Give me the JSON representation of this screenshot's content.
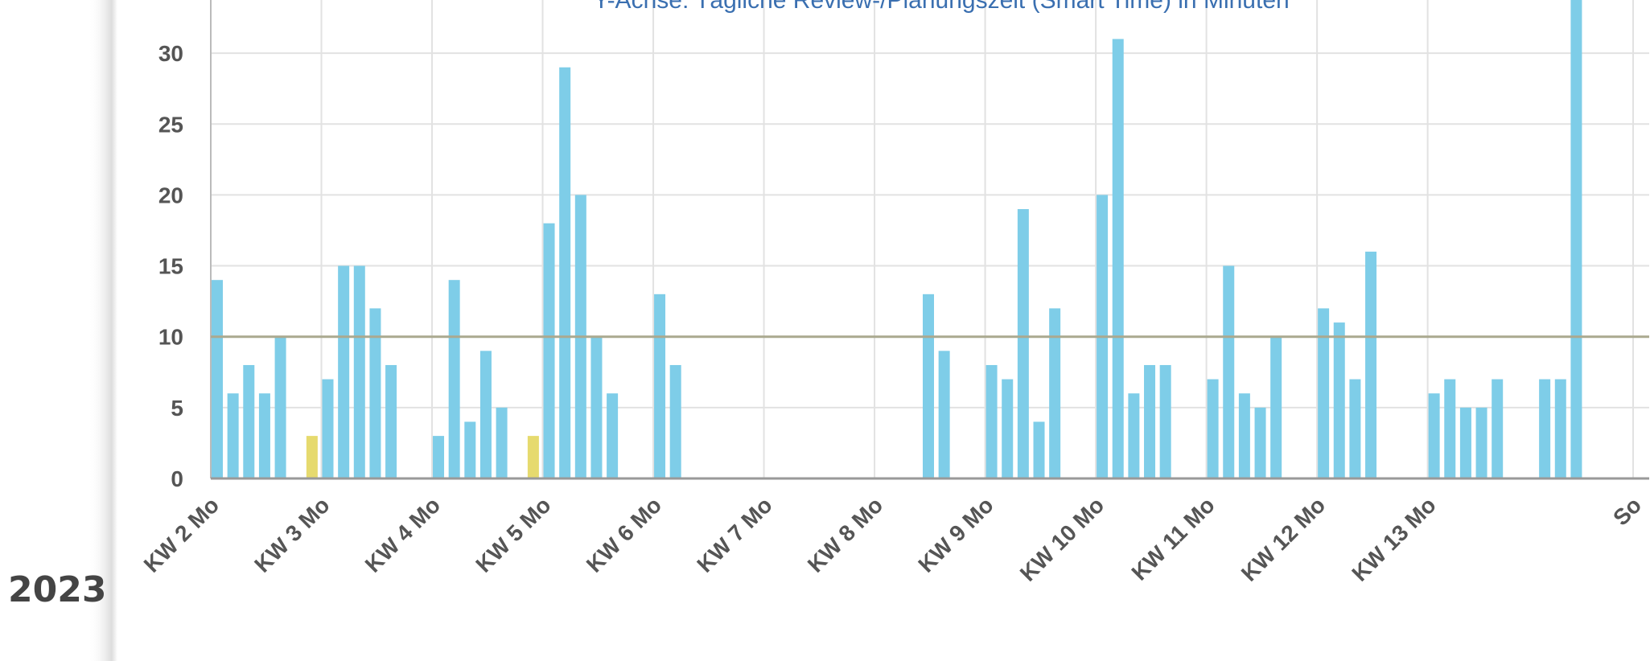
{
  "year": "2023",
  "chart_data": {
    "type": "bar",
    "title": "Y-Achse: Tägliche Review-/Planungszeit (Smart Time) in Minuten",
    "categories": [
      "KW 2 Mo",
      null,
      null,
      null,
      null,
      null,
      null,
      "KW 3 Mo",
      null,
      null,
      null,
      null,
      null,
      null,
      "KW 4 Mo",
      null,
      null,
      null,
      null,
      null,
      null,
      "KW 5 Mo",
      null,
      null,
      null,
      null,
      null,
      null,
      "KW 6 Mo",
      null,
      null,
      null,
      null,
      null,
      null,
      "KW 7 Mo",
      null,
      null,
      null,
      null,
      null,
      null,
      "KW 8 Mo",
      null,
      null,
      null,
      null,
      null,
      null,
      "KW 9 Mo",
      null,
      null,
      null,
      null,
      null,
      null,
      "KW 10 Mo",
      null,
      null,
      null,
      null,
      null,
      null,
      "KW 11 Mo",
      null,
      null,
      null,
      null,
      null,
      null,
      "KW 12 Mo",
      null,
      null,
      null,
      null,
      null,
      null,
      "KW 13 Mo",
      null,
      null,
      null,
      null,
      null,
      null,
      null,
      null,
      null,
      null,
      null,
      null,
      "So"
    ],
    "values": [
      14,
      6,
      8,
      6,
      10,
      null,
      3,
      7,
      15,
      15,
      12,
      8,
      null,
      null,
      3,
      14,
      4,
      9,
      5,
      null,
      3,
      18,
      29,
      20,
      10,
      6,
      null,
      null,
      13,
      8,
      null,
      null,
      null,
      null,
      null,
      null,
      null,
      null,
      null,
      null,
      null,
      null,
      null,
      null,
      null,
      13,
      9,
      null,
      null,
      8,
      7,
      19,
      4,
      12,
      null,
      null,
      20,
      31,
      6,
      8,
      8,
      null,
      null,
      7,
      15,
      6,
      5,
      10,
      null,
      null,
      12,
      11,
      7,
      16,
      null,
      null,
      null,
      6,
      7,
      5,
      5,
      7,
      null,
      null,
      7,
      7,
      36,
      null,
      null,
      null,
      null
    ],
    "colors": [
      "#7ecde8",
      "#7ecde8",
      "#7ecde8",
      "#7ecde8",
      "#7ecde8",
      "#7ecde8",
      "#e6da6e",
      "#7ecde8",
      "#7ecde8",
      "#7ecde8",
      "#7ecde8",
      "#7ecde8",
      "#7ecde8",
      "#7ecde8",
      "#7ecde8",
      "#7ecde8",
      "#7ecde8",
      "#7ecde8",
      "#7ecde8",
      "#7ecde8",
      "#e6da6e",
      "#7ecde8",
      "#7ecde8",
      "#7ecde8",
      "#7ecde8",
      "#7ecde8",
      "#7ecde8",
      "#7ecde8",
      "#7ecde8",
      "#7ecde8",
      "#7ecde8",
      "#7ecde8",
      "#7ecde8",
      "#7ecde8",
      "#7ecde8",
      "#7ecde8",
      "#7ecde8",
      "#7ecde8",
      "#7ecde8",
      "#7ecde8",
      "#7ecde8",
      "#7ecde8",
      "#7ecde8",
      "#7ecde8",
      "#7ecde8",
      "#7ecde8",
      "#7ecde8",
      "#7ecde8",
      "#7ecde8",
      "#7ecde8",
      "#7ecde8",
      "#7ecde8",
      "#7ecde8",
      "#7ecde8",
      "#7ecde8",
      "#7ecde8",
      "#7ecde8",
      "#7ecde8",
      "#7ecde8",
      "#7ecde8",
      "#7ecde8",
      "#7ecde8",
      "#7ecde8",
      "#7ecde8",
      "#7ecde8",
      "#7ecde8",
      "#7ecde8",
      "#7ecde8",
      "#7ecde8",
      "#7ecde8",
      "#7ecde8",
      "#7ecde8",
      "#7ecde8",
      "#7ecde8",
      "#7ecde8",
      "#7ecde8",
      "#7ecde8",
      "#7ecde8",
      "#7ecde8",
      "#7ecde8",
      "#7ecde8",
      "#7ecde8",
      "#7ecde8",
      "#7ecde8",
      "#7ecde8",
      "#7ecde8",
      "#7ecde8",
      "#7ecde8",
      "#7ecde8",
      "#7ecde8",
      "#7ecde8"
    ],
    "reference_line": {
      "value": 10,
      "color": "#aaa98f"
    },
    "ylim": [
      0,
      33.75
    ],
    "yticks": [
      0,
      5,
      10,
      15,
      20,
      25,
      30
    ],
    "grid": true
  }
}
